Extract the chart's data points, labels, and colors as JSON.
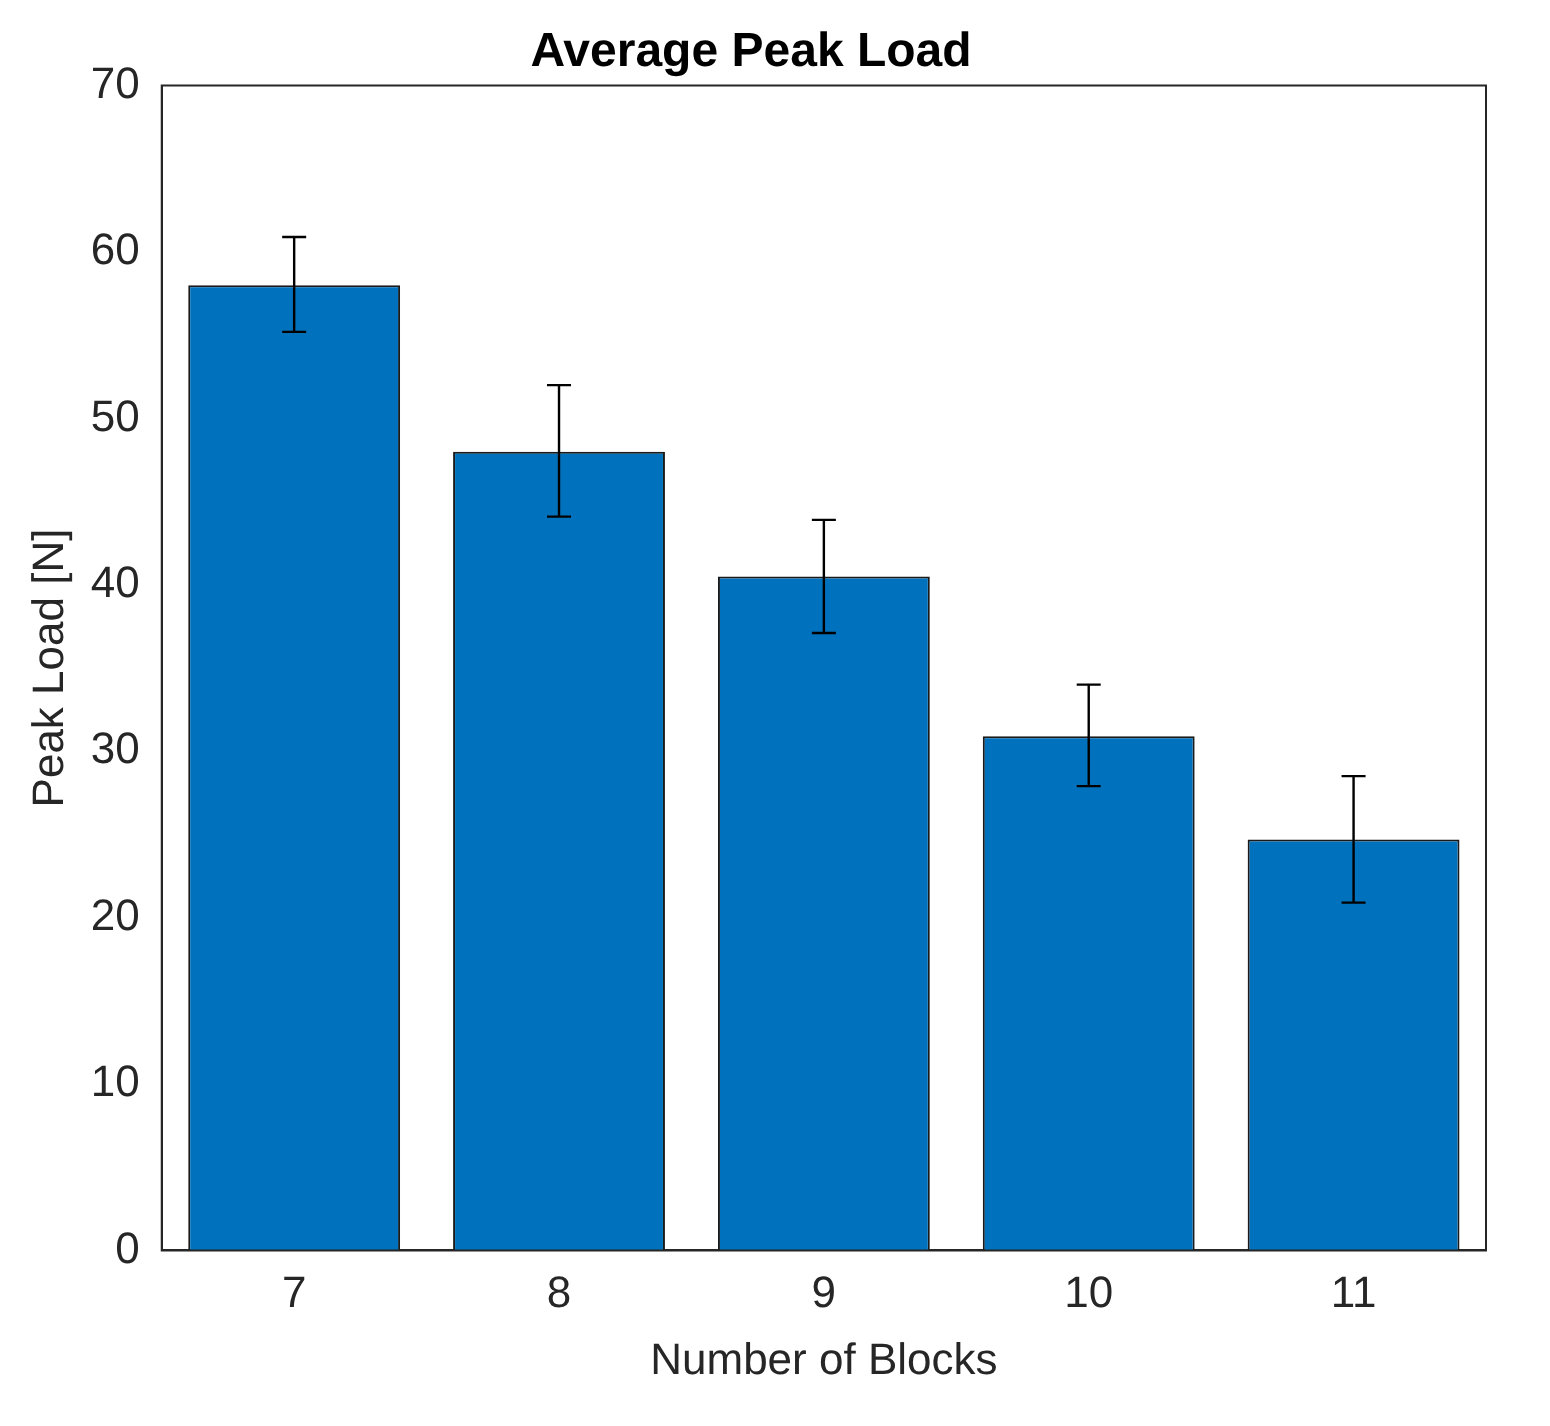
{
  "chart_data": {
    "type": "bar",
    "title": "Average Peak Load",
    "xlabel": "Number of Blocks",
    "ylabel": "Peak Load [N]",
    "categories": [
      "7",
      "8",
      "9",
      "10",
      "11"
    ],
    "values": [
      58.0,
      48.0,
      40.5,
      30.9,
      24.7
    ],
    "errors": [
      [
        55.2,
        60.9
      ],
      [
        44.1,
        52.0
      ],
      [
        37.1,
        43.9
      ],
      [
        27.9,
        34.0
      ],
      [
        20.9,
        28.5
      ]
    ],
    "color": "#0072bd",
    "ylim": [
      0,
      70
    ],
    "yticks": [
      0,
      10,
      20,
      30,
      40,
      50,
      60,
      70
    ],
    "grid": false,
    "legend": false
  }
}
